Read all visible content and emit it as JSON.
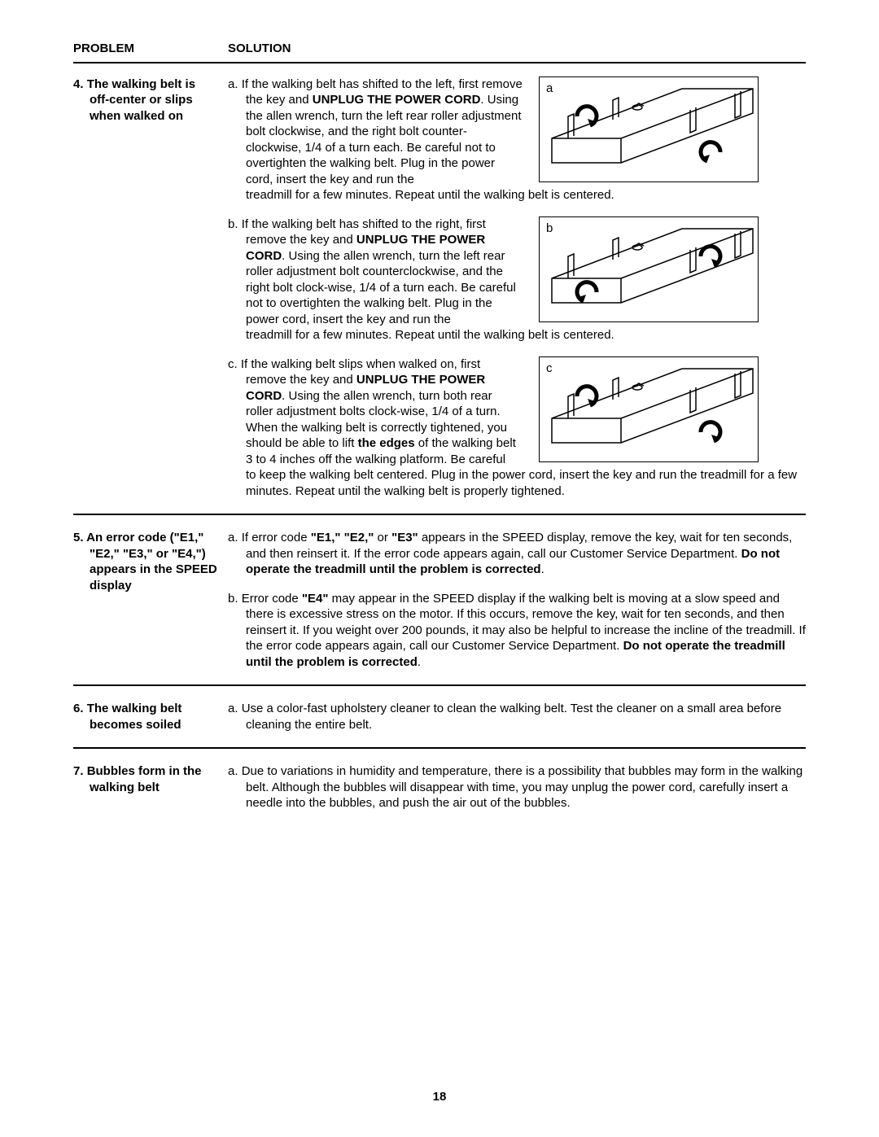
{
  "header": {
    "problem_label": "PROBLEM",
    "solution_label": "SOLUTION"
  },
  "sections": [
    {
      "num": "4.",
      "problem_lines": [
        "The walking belt is",
        "off-center or slips",
        "when walked on"
      ],
      "items": [
        {
          "letter": "a.",
          "fig_label": "a",
          "fig_type": "left",
          "narrow_html": "If the walking belt has shifted to the left, first remove the key and <b>UNPLUG THE POWER CORD</b>. Using the allen wrench, turn the left rear roller adjustment bolt clockwise, and the right bolt counter-clockwise, 1/4 of a turn each. Be careful not to overtighten the walking belt. Plug in the power cord, insert the key and run the",
          "wide_html": "treadmill for a few minutes. Repeat until the walking belt is centered."
        },
        {
          "letter": "b.",
          "fig_label": "b",
          "fig_type": "right",
          "narrow_html": "If the walking belt has shifted to the right, first remove the key and <b>UNPLUG THE POWER CORD</b>. Using the allen wrench, turn the left rear roller adjustment bolt counterclockwise, and the right bolt clock-wise, 1/4 of a turn each. Be careful not to overtighten the walking belt. Plug in the power cord, insert the key and run the",
          "wide_html": "treadmill for a few minutes. Repeat until the walking belt is centered."
        },
        {
          "letter": "c.",
          "fig_label": "c",
          "fig_type": "both",
          "narrow_html": "If the walking belt slips when walked on, first remove the key and <b>UNPLUG THE POWER CORD</b>. Using the allen wrench, turn both rear roller adjustment bolts clock-wise, 1/4 of a turn. When the walking belt is correctly tightened, you should be able to lift <b>the edges</b> of the walking belt 3 to 4 inches off the walking platform. Be careful",
          "wide_html": "to keep the walking belt centered. Plug in the power cord, insert the key and run the treadmill for a few minutes. Repeat until the walking belt is properly tightened."
        }
      ]
    },
    {
      "num": "5.",
      "problem_lines": [
        "An error code (\"E1,\"",
        "\"E2,\" \"E3,\" or \"E4,\")",
        "appears in the SPEED",
        "display"
      ],
      "items": [
        {
          "letter": "a.",
          "html": "If error code <b>\"E1,\" \"E2,\"</b> or <b>\"E3\"</b> appears in the SPEED display, remove the key, wait for ten seconds, and then reinsert it. If the error code appears again, call our Customer Service Department. <b>Do not operate the treadmill until the problem is corrected</b>."
        },
        {
          "letter": "b.",
          "html": "Error code <b>\"E4\"</b> may appear in the SPEED display if the walking belt is moving at a slow speed and there is excessive stress on the motor. If this occurs, remove the key, wait for ten seconds, and then reinsert it. If you weight over 200 pounds, it may also be helpful to increase the incline of the treadmill. If the error code appears again, call our Customer Service Department. <b>Do not operate the treadmill until the problem is corrected</b>."
        }
      ]
    },
    {
      "num": "6.",
      "problem_lines": [
        "The walking belt",
        "becomes soiled"
      ],
      "items": [
        {
          "letter": "a.",
          "html": "Use a color-fast upholstery cleaner to clean the walking belt. Test the cleaner on a small area before cleaning the entire belt."
        }
      ]
    },
    {
      "num": "7.",
      "problem_lines": [
        "Bubbles form in the",
        "walking belt"
      ],
      "items": [
        {
          "letter": "a.",
          "html": "Due to variations in humidity and temperature, there is a possibility that bubbles may form in the walking belt. Although the bubbles will disappear with time, you may unplug the power cord, carefully insert a needle into the bubbles, and push the air out of the bubbles."
        }
      ]
    }
  ],
  "page_number": "18"
}
